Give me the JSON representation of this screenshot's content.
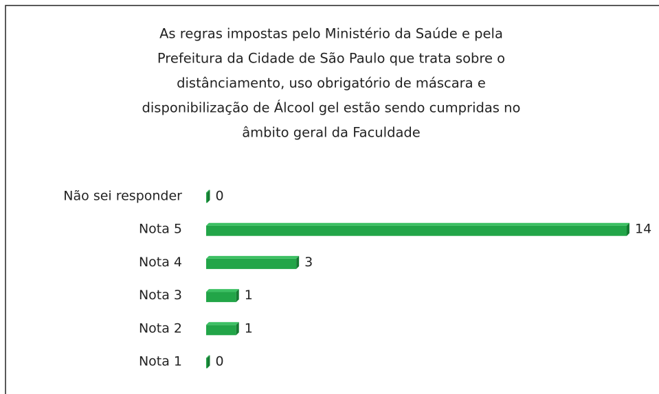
{
  "chart_data": {
    "type": "bar",
    "orientation": "horizontal",
    "title": [
      "As regras impostas pelo Ministério da Saúde e pela",
      "Prefeitura da Cidade de São Paulo que trata sobre o",
      "distânciamento, uso obrigatório de máscara e",
      "disponibilização de Álcool gel estão sendo cumpridas no",
      "âmbito geral da Faculdade"
    ],
    "categories": [
      "Não sei responder",
      "Nota 5",
      "Nota 4",
      "Nota 3",
      "Nota 2",
      "Nota 1"
    ],
    "values": [
      0,
      14,
      3,
      1,
      1,
      0
    ],
    "color": "#22a548"
  }
}
